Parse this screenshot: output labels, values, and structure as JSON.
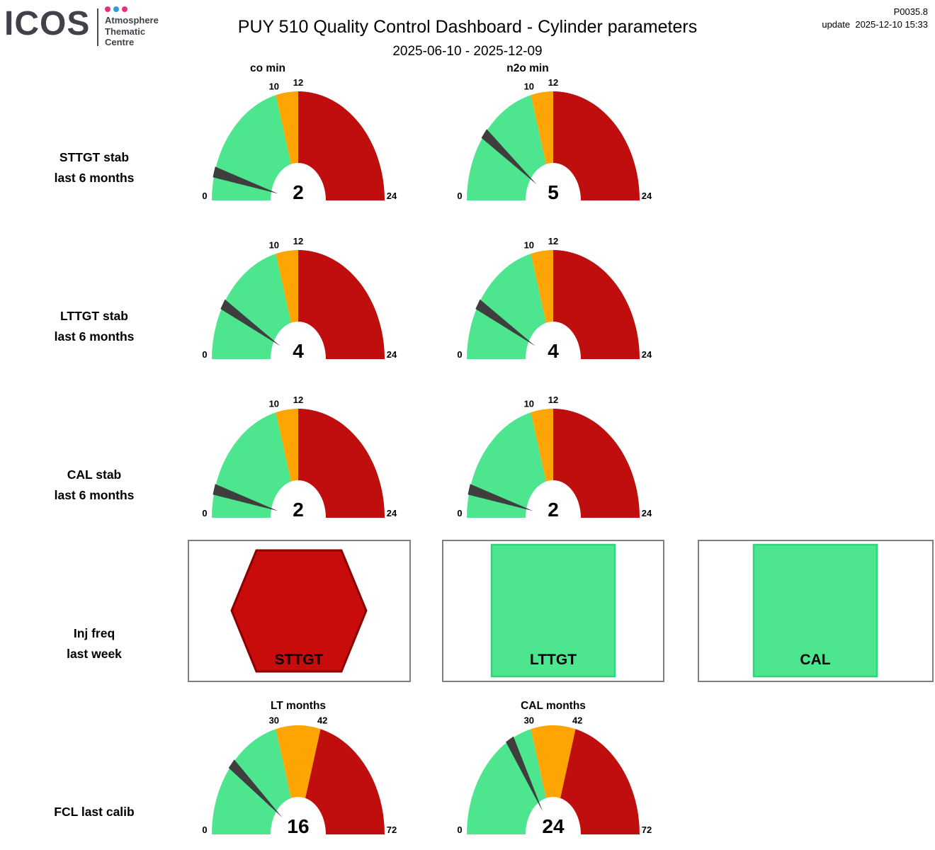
{
  "header": {
    "logo_text": "ICOS",
    "org_lines": [
      "Atmosphere",
      "Thematic",
      "Centre"
    ],
    "title": "PUY 510 Quality Control Dashboard - Cylinder parameters",
    "subtitle": "2025-06-10 - 2025-12-09",
    "report_id": "P0035.8",
    "update_label": "update",
    "update_timestamp": "2025-12-10 15:33"
  },
  "column_headers": [
    {
      "label": "co min"
    },
    {
      "label": "n2o min"
    }
  ],
  "row_labels": [
    {
      "line1": "STTGT stab",
      "line2": "last 6 months"
    },
    {
      "line1": "LTTGT stab",
      "line2": "last 6 months"
    },
    {
      "line1": "CAL stab",
      "line2": "last 6 months"
    },
    {
      "line1": "Inj freq",
      "line2": "last week"
    },
    {
      "line1": "FCL last calib",
      "line2": ""
    }
  ],
  "colors": {
    "green": "#4de68f",
    "orange": "#ffa503",
    "red": "#c00d0d",
    "needle": "#3e3e3e",
    "hex_fill": "#c80c0c",
    "hex_border": "#8b0000",
    "square_fill": "#4de68f",
    "square_border": "#2ed47f",
    "box_border": "#7f7f7f",
    "logo_gray": "#3f4248",
    "logo_pink": "#e6327c",
    "logo_blue": "#2e9fd6"
  },
  "chart_data": [
    {
      "type": "gauge",
      "row": "STTGT stab last 6 months",
      "column": "co min",
      "value": 2,
      "min": 0,
      "max": 24,
      "ticks": [
        0,
        10,
        12,
        24
      ],
      "segments": [
        {
          "from": 0,
          "to": 10,
          "color": "green"
        },
        {
          "from": 10,
          "to": 12,
          "color": "orange"
        },
        {
          "from": 12,
          "to": 24,
          "color": "red"
        }
      ]
    },
    {
      "type": "gauge",
      "row": "STTGT stab last 6 months",
      "column": "n2o min",
      "value": 5,
      "min": 0,
      "max": 24,
      "ticks": [
        0,
        10,
        12,
        24
      ],
      "segments": [
        {
          "from": 0,
          "to": 10,
          "color": "green"
        },
        {
          "from": 10,
          "to": 12,
          "color": "orange"
        },
        {
          "from": 12,
          "to": 24,
          "color": "red"
        }
      ]
    },
    {
      "type": "gauge",
      "row": "LTTGT stab last 6 months",
      "column": "co min",
      "value": 4,
      "min": 0,
      "max": 24,
      "ticks": [
        0,
        10,
        12,
        24
      ],
      "segments": [
        {
          "from": 0,
          "to": 10,
          "color": "green"
        },
        {
          "from": 10,
          "to": 12,
          "color": "orange"
        },
        {
          "from": 12,
          "to": 24,
          "color": "red"
        }
      ]
    },
    {
      "type": "gauge",
      "row": "LTTGT stab last 6 months",
      "column": "n2o min",
      "value": 4,
      "min": 0,
      "max": 24,
      "ticks": [
        0,
        10,
        12,
        24
      ],
      "segments": [
        {
          "from": 0,
          "to": 10,
          "color": "green"
        },
        {
          "from": 10,
          "to": 12,
          "color": "orange"
        },
        {
          "from": 12,
          "to": 24,
          "color": "red"
        }
      ]
    },
    {
      "type": "gauge",
      "row": "CAL stab last 6 months",
      "column": "co min",
      "value": 2,
      "min": 0,
      "max": 24,
      "ticks": [
        0,
        10,
        12,
        24
      ],
      "segments": [
        {
          "from": 0,
          "to": 10,
          "color": "green"
        },
        {
          "from": 10,
          "to": 12,
          "color": "orange"
        },
        {
          "from": 12,
          "to": 24,
          "color": "red"
        }
      ]
    },
    {
      "type": "gauge",
      "row": "CAL stab last 6 months",
      "column": "n2o min",
      "value": 2,
      "min": 0,
      "max": 24,
      "ticks": [
        0,
        10,
        12,
        24
      ],
      "segments": [
        {
          "from": 0,
          "to": 10,
          "color": "green"
        },
        {
          "from": 10,
          "to": 12,
          "color": "orange"
        },
        {
          "from": 12,
          "to": 24,
          "color": "red"
        }
      ]
    },
    {
      "type": "gauge",
      "row": "FCL last calib",
      "title": "LT months",
      "value": 16,
      "min": 0,
      "max": 72,
      "ticks": [
        0,
        30,
        42,
        72
      ],
      "segments": [
        {
          "from": 0,
          "to": 30,
          "color": "green"
        },
        {
          "from": 30,
          "to": 42,
          "color": "orange"
        },
        {
          "from": 42,
          "to": 72,
          "color": "red"
        }
      ]
    },
    {
      "type": "gauge",
      "row": "FCL last calib",
      "title": "CAL months",
      "value": 24,
      "min": 0,
      "max": 72,
      "ticks": [
        0,
        30,
        42,
        72
      ],
      "segments": [
        {
          "from": 0,
          "to": 30,
          "color": "green"
        },
        {
          "from": 30,
          "to": 42,
          "color": "orange"
        },
        {
          "from": 42,
          "to": 72,
          "color": "red"
        }
      ]
    }
  ],
  "status_boxes": [
    {
      "label": "STTGT",
      "shape": "hexagon",
      "status": "red"
    },
    {
      "label": "LTTGT",
      "shape": "square",
      "status": "green"
    },
    {
      "label": "CAL",
      "shape": "square",
      "status": "green"
    }
  ]
}
